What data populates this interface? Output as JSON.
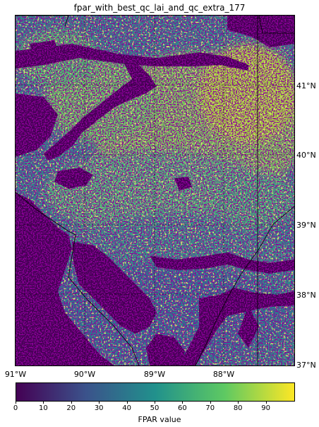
{
  "title": "fpar_with_best_qc_lai_and_qc_extra_177",
  "map": {
    "lat_labels": [
      "41°N",
      "40°N",
      "39°N",
      "38°N",
      "37°N"
    ],
    "lon_labels": [
      "91°W",
      "90°W",
      "89°W",
      "88°W"
    ],
    "background_color": "#440154",
    "gridline_color": "#000000"
  },
  "colorbar": {
    "label": "FPAR value",
    "ticks": [
      "0",
      "10",
      "20",
      "30",
      "40",
      "50",
      "60",
      "70",
      "80",
      "90"
    ],
    "range": [
      0,
      100
    ],
    "colormap": "viridis",
    "colors": [
      "#440154",
      "#3b528b",
      "#21918c",
      "#5ec962",
      "#fde725"
    ]
  }
}
